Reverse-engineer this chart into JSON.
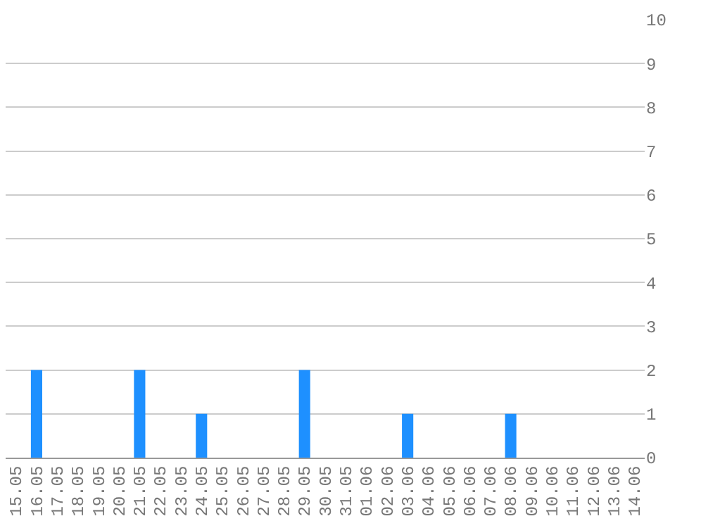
{
  "chart_data": {
    "type": "bar",
    "categories": [
      "15.05",
      "16.05",
      "17.05",
      "18.05",
      "19.05",
      "20.05",
      "21.05",
      "22.05",
      "23.05",
      "24.05",
      "25.05",
      "26.05",
      "27.05",
      "28.05",
      "29.05",
      "30.05",
      "31.05",
      "01.06",
      "02.06",
      "03.06",
      "04.06",
      "05.06",
      "06.06",
      "07.06",
      "08.06",
      "09.06",
      "10.06",
      "11.06",
      "12.06",
      "13.06",
      "14.06"
    ],
    "values": [
      0,
      2,
      0,
      0,
      0,
      0,
      2,
      0,
      0,
      1,
      0,
      0,
      0,
      0,
      2,
      0,
      0,
      0,
      0,
      1,
      0,
      0,
      0,
      0,
      1,
      0,
      0,
      0,
      0,
      0,
      0
    ],
    "color": "#1e90ff",
    "ylim": [
      0,
      10
    ],
    "yticks": [
      0,
      1,
      2,
      3,
      4,
      5,
      6,
      7,
      8,
      9,
      10
    ],
    "grid": "y"
  }
}
